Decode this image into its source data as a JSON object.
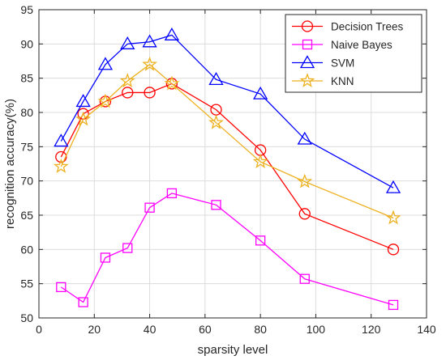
{
  "chart_data": {
    "type": "line",
    "xlabel": "sparsity level",
    "ylabel": "recognition accuracy(%)",
    "xlim": [
      0,
      140
    ],
    "ylim": [
      50,
      95
    ],
    "xticks": [
      0,
      20,
      40,
      60,
      80,
      100,
      120,
      140
    ],
    "yticks": [
      50,
      55,
      60,
      65,
      70,
      75,
      80,
      85,
      90,
      95
    ],
    "grid": true,
    "legend_position": "top-right",
    "x": [
      8,
      16,
      24,
      32,
      40,
      48,
      64,
      80,
      96,
      128
    ],
    "series": [
      {
        "name": "Decision Trees",
        "color": "#ff0000",
        "marker": "circle",
        "values": [
          73.5,
          79.8,
          81.6,
          82.9,
          82.9,
          84.2,
          80.4,
          74.5,
          65.2,
          60.0
        ]
      },
      {
        "name": "Naive Bayes",
        "color": "#ff00ff",
        "marker": "square",
        "values": [
          54.5,
          52.3,
          58.8,
          60.2,
          66.1,
          68.2,
          66.5,
          61.3,
          55.7,
          51.9
        ]
      },
      {
        "name": "SVM",
        "color": "#0000ff",
        "marker": "triangle",
        "values": [
          75.8,
          81.6,
          87.0,
          90.0,
          90.3,
          91.3,
          84.8,
          82.7,
          76.1,
          69.0
        ]
      },
      {
        "name": "KNN",
        "color": "#edb120",
        "marker": "star",
        "values": [
          72.1,
          79.0,
          81.6,
          84.6,
          87.0,
          84.2,
          78.5,
          72.8,
          69.9,
          64.6
        ]
      }
    ]
  }
}
